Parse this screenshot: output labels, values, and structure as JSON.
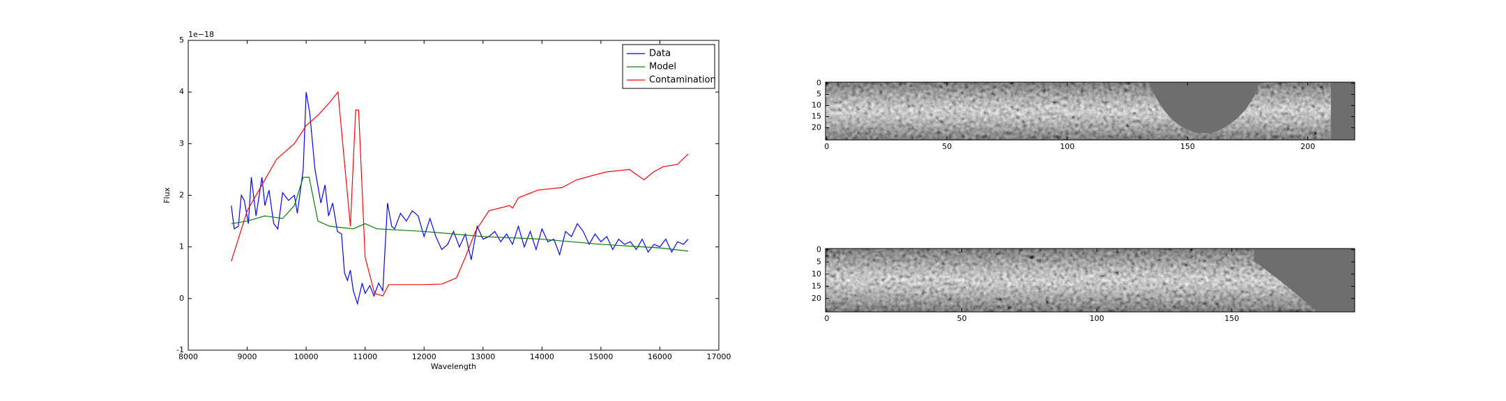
{
  "chart_data": [
    {
      "type": "line",
      "xlabel": "Wavelength",
      "ylabel": "Flux",
      "offset_text": "1e−18",
      "xlim": [
        8000,
        17000
      ],
      "xticks": [
        8000,
        9000,
        10000,
        11000,
        12000,
        13000,
        14000,
        15000,
        16000,
        17000
      ],
      "ylim": [
        -1,
        5
      ],
      "yticks": [
        -1,
        0,
        1,
        2,
        3,
        4,
        5
      ],
      "legend": "upper right",
      "series": [
        {
          "name": "Data",
          "color": "#0000ff",
          "x": [
            8730,
            8780,
            8850,
            8900,
            8950,
            9020,
            9070,
            9150,
            9250,
            9300,
            9370,
            9450,
            9520,
            9600,
            9700,
            9800,
            9850,
            9950,
            10000,
            10060,
            10150,
            10250,
            10320,
            10380,
            10450,
            10530,
            10600,
            10650,
            10700,
            10750,
            10800,
            10870,
            10950,
            11000,
            11080,
            11150,
            11230,
            11300,
            11380,
            11450,
            11500,
            11600,
            11700,
            11800,
            11900,
            12000,
            12100,
            12200,
            12300,
            12400,
            12500,
            12600,
            12700,
            12800,
            12900,
            13000,
            13100,
            13200,
            13300,
            13400,
            13500,
            13600,
            13700,
            13800,
            13900,
            14000,
            14100,
            14200,
            14300,
            14400,
            14500,
            14600,
            14700,
            14800,
            14900,
            15000,
            15100,
            15200,
            15300,
            15400,
            15500,
            15600,
            15700,
            15800,
            15900,
            16000,
            16100,
            16200,
            16300,
            16400,
            16480
          ],
          "values": [
            1.8,
            1.35,
            1.4,
            2.0,
            1.9,
            1.45,
            2.35,
            1.6,
            2.35,
            1.8,
            2.1,
            1.45,
            1.35,
            2.05,
            1.9,
            2.0,
            1.65,
            2.5,
            4.0,
            3.6,
            2.5,
            1.85,
            2.2,
            1.6,
            1.85,
            1.3,
            1.25,
            0.5,
            0.35,
            0.55,
            0.15,
            -0.1,
            0.3,
            0.1,
            0.25,
            0.05,
            0.3,
            0.15,
            1.85,
            1.4,
            1.35,
            1.65,
            1.5,
            1.7,
            1.6,
            1.2,
            1.55,
            1.2,
            0.95,
            1.05,
            1.3,
            1.0,
            1.25,
            0.75,
            1.4,
            1.15,
            1.2,
            1.3,
            1.1,
            1.25,
            1.05,
            1.4,
            1.0,
            1.3,
            0.95,
            1.35,
            1.1,
            1.15,
            0.85,
            1.3,
            1.2,
            1.45,
            1.3,
            1.05,
            1.25,
            1.1,
            1.2,
            0.95,
            1.15,
            1.05,
            1.1,
            0.95,
            1.15,
            0.9,
            1.05,
            1.0,
            1.15,
            0.9,
            1.1,
            1.05,
            1.15
          ]
        },
        {
          "name": "Model",
          "color": "#008000",
          "x": [
            8730,
            9000,
            9300,
            9600,
            9800,
            9950,
            10050,
            10200,
            10400,
            10800,
            11000,
            11200,
            12000,
            13000,
            14000,
            15000,
            16000,
            16480
          ],
          "values": [
            1.45,
            1.5,
            1.6,
            1.55,
            1.8,
            2.35,
            2.35,
            1.5,
            1.4,
            1.35,
            1.45,
            1.35,
            1.3,
            1.2,
            1.15,
            1.05,
            0.98,
            0.92
          ]
        },
        {
          "name": "Contamination",
          "color": "#ff0000",
          "x": [
            8730,
            9000,
            9500,
            9800,
            10000,
            10200,
            10400,
            10540,
            10750,
            10840,
            10890,
            11000,
            11160,
            11300,
            11400,
            11980,
            12300,
            12550,
            12700,
            12870,
            13100,
            13450,
            13500,
            13600,
            13930,
            14340,
            14590,
            15080,
            15480,
            15730,
            15890,
            16050,
            16300,
            16480
          ],
          "values": [
            0.72,
            1.7,
            2.7,
            3.0,
            3.35,
            3.55,
            3.8,
            4.0,
            1.4,
            3.65,
            3.65,
            0.8,
            0.1,
            0.05,
            0.27,
            0.27,
            0.28,
            0.4,
            0.8,
            1.3,
            1.7,
            1.8,
            1.75,
            1.95,
            2.1,
            2.15,
            2.3,
            2.45,
            2.5,
            2.3,
            2.45,
            2.55,
            2.6,
            2.8
          ]
        }
      ]
    },
    {
      "type": "image",
      "xlim": [
        -0.5,
        219.5
      ],
      "xticks": [
        0,
        50,
        100,
        150,
        200
      ],
      "ylim": [
        25.5,
        -0.5
      ],
      "yticks": [
        0,
        5,
        10,
        15,
        20
      ]
    },
    {
      "type": "image",
      "xlim": [
        -0.5,
        195.5
      ],
      "xticks": [
        0,
        50,
        100,
        150
      ],
      "ylim": [
        25.5,
        -0.5
      ],
      "yticks": [
        0,
        5,
        10,
        15,
        20
      ]
    }
  ]
}
